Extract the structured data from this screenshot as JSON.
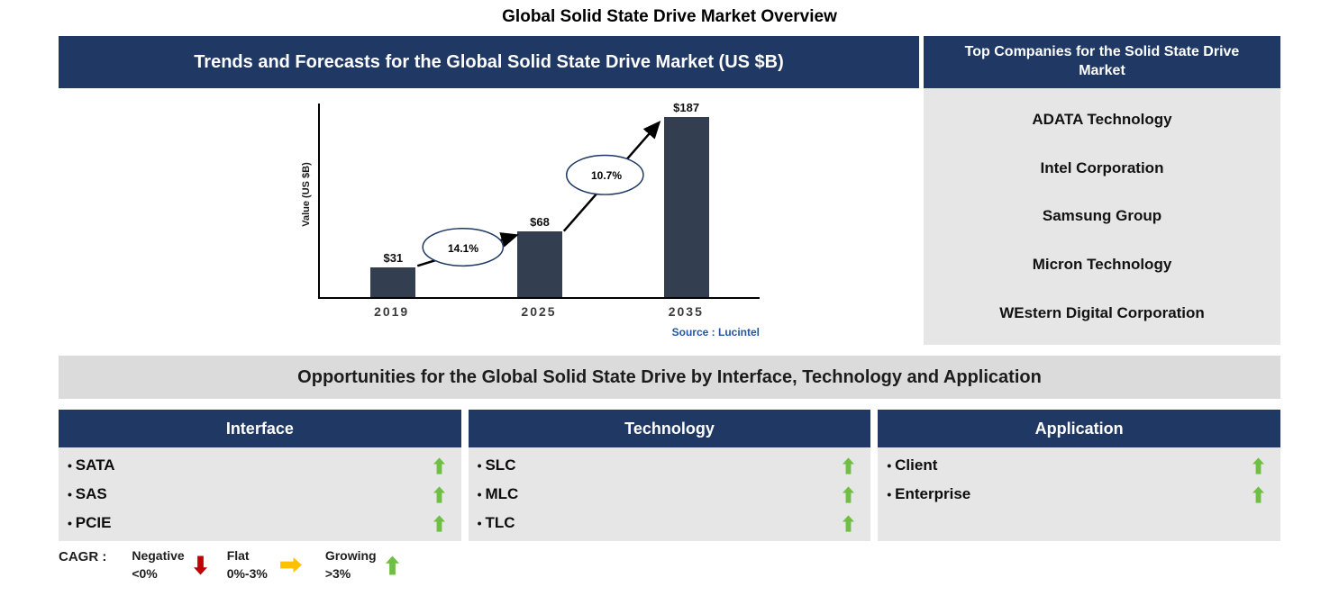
{
  "page": {
    "title": "Global Solid State Drive Market Overview"
  },
  "trends": {
    "header": "Trends and Forecasts for the Global Solid State Drive Market (US $B)",
    "source": "Source : Lucintel"
  },
  "chart_data": {
    "type": "bar",
    "title": "Trends and Forecasts for the Global Solid State Drive Market (US $B)",
    "categories": [
      "2019",
      "2025",
      "2035"
    ],
    "values": [
      31,
      68,
      187
    ],
    "value_labels": [
      "$31",
      "$68",
      "$187"
    ],
    "ylabel": "Value (US $B)",
    "xlabel": "",
    "ylim": [
      0,
      187
    ],
    "grid": false,
    "legend_position": "none",
    "bar_color": "#333F50",
    "growth_annotations": [
      {
        "label": "14.1%",
        "between": [
          "2019",
          "2025"
        ]
      },
      {
        "label": "10.7%",
        "between": [
          "2025",
          "2035"
        ]
      }
    ]
  },
  "top_companies": {
    "header": "Top Companies for the Solid State Drive Market",
    "companies": [
      "ADATA Technology",
      "Intel Corporation",
      "Samsung Group",
      "Micron Technology",
      "WEstern Digital Corporation"
    ]
  },
  "opportunities": {
    "header": "Opportunities for the Global Solid State Drive by Interface, Technology and Application",
    "columns": [
      {
        "header": "Interface",
        "items": [
          {
            "label": "SATA",
            "trend": "up"
          },
          {
            "label": "SAS",
            "trend": "up"
          },
          {
            "label": "PCIE",
            "trend": "up"
          }
        ]
      },
      {
        "header": "Technology",
        "items": [
          {
            "label": "SLC",
            "trend": "up"
          },
          {
            "label": "MLC",
            "trend": "up"
          },
          {
            "label": "TLC",
            "trend": "up"
          }
        ]
      },
      {
        "header": "Application",
        "items": [
          {
            "label": "Client",
            "trend": "up"
          },
          {
            "label": "Enterprise",
            "trend": "up"
          }
        ]
      }
    ]
  },
  "legend": {
    "label": "CAGR :",
    "items": [
      {
        "label": "Negative",
        "range": "<0%",
        "direction": "down",
        "color": "#C00000"
      },
      {
        "label": "Flat",
        "range": "0%-3%",
        "direction": "right",
        "color": "#FFC000"
      },
      {
        "label": "Growing",
        "range": ">3%",
        "direction": "up",
        "color": "#6FBF44"
      }
    ]
  },
  "colors": {
    "navy": "#1F3864",
    "panel_gray": "#E7E6E6",
    "bar": "#333F50",
    "growth_green": "#6FBF44",
    "source_blue": "#2456A4"
  }
}
